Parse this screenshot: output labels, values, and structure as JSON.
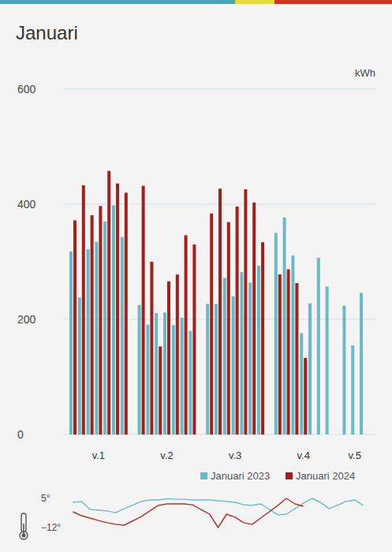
{
  "chart_data": [
    {
      "type": "bar",
      "title": "Januari",
      "ylabel": "kWh",
      "categories": [
        null,
        null,
        null,
        "v.1",
        null,
        null,
        null,
        null,
        null,
        null,
        "v.2",
        null,
        null,
        null,
        null,
        null,
        null,
        "v.3",
        null,
        null,
        null,
        null,
        null,
        null,
        "v.4",
        null,
        null,
        null,
        null,
        "v.5",
        null
      ],
      "series": [
        {
          "name": "Januari 2023",
          "color": "#6cb9c6",
          "values": [
            318,
            238,
            322,
            335,
            370,
            398,
            343,
            225,
            191,
            211,
            212,
            190,
            203,
            180,
            227,
            227,
            272,
            240,
            282,
            264,
            293,
            350,
            377,
            311,
            176,
            228,
            307,
            257,
            224,
            155,
            246
          ]
        },
        {
          "name": "Januari 2024",
          "color": "#a3211c",
          "values": [
            372,
            433,
            381,
            397,
            458,
            436,
            420,
            432,
            300,
            153,
            266,
            278,
            346,
            330,
            384,
            427,
            369,
            396,
            426,
            403,
            334,
            278,
            287,
            263,
            133,
            null,
            null,
            null,
            null,
            null,
            null
          ]
        }
      ],
      "ylim": [
        0,
        600
      ],
      "yticks": [
        0,
        200,
        400,
        600
      ],
      "grid": true,
      "legend": "bottom-right"
    },
    {
      "type": "line",
      "categories": [
        null,
        null,
        null,
        null,
        null,
        null,
        null,
        null,
        null,
        null,
        null,
        null,
        null,
        null,
        null,
        null,
        null,
        null,
        null,
        null,
        null,
        null,
        null,
        null,
        null,
        null,
        null,
        null,
        null,
        null,
        null
      ],
      "series": [
        {
          "color": "#6cb9c6",
          "values": [
            2.7,
            3.2,
            -1.4,
            -1.9,
            -2.3,
            -3.3,
            -1.0,
            3.2,
            4.1,
            4.1,
            4.8,
            4.5,
            4.5,
            4.1,
            4.1,
            3.6,
            3.2,
            2.7,
            1.3,
            0.9,
            1.8,
            -4.6,
            -4.2,
            -1.0,
            2.2,
            5.0,
            2.7,
            -1.0,
            3.2,
            4.1,
            0.9
          ]
        },
        {
          "color": "#b83028",
          "values": [
            -2.8,
            -5.1,
            -6.5,
            -7.9,
            -9.2,
            -10.1,
            -10.6,
            -5.6,
            -2.3,
            0.9,
            1.8,
            1.8,
            1.8,
            1.3,
            -4.2,
            -12.0,
            -4.2,
            -6.0,
            -9.2,
            -10.1,
            -6.5,
            0.9,
            5.0,
            1.8,
            0.4,
            null,
            null,
            null,
            null,
            null,
            null
          ]
        }
      ],
      "ylim": [
        -12,
        5
      ],
      "yticks": [
        {
          "value": 5,
          "label": "5°"
        },
        {
          "value": -12,
          "label": "−12°"
        }
      ],
      "tick_labels": "y"
    }
  ]
}
